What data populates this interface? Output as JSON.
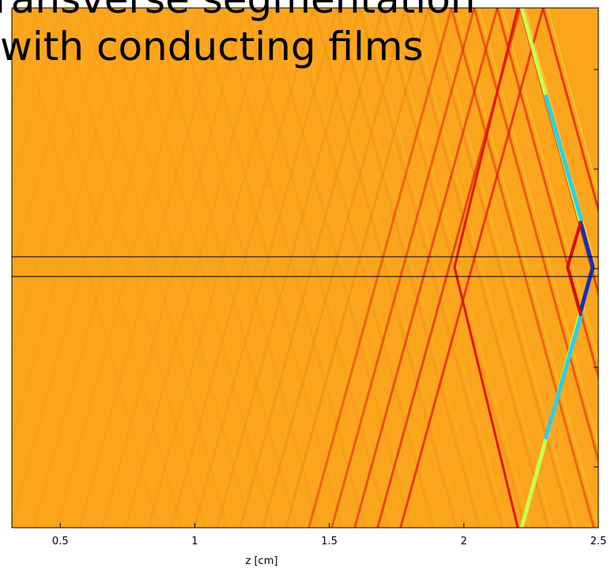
{
  "chart_data": {
    "type": "heatmap",
    "title_lines": [
      "Transverse segmentation",
      "with conducting films"
    ],
    "xlabel": "z [cm]",
    "xlim": [
      0.32,
      2.5
    ],
    "xticks": [
      0.5,
      1,
      1.5,
      2,
      2.5
    ],
    "background_color": "#faa51c"
  }
}
